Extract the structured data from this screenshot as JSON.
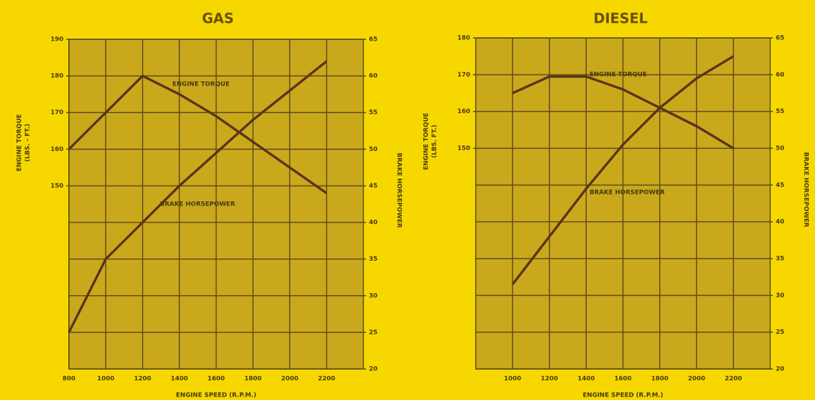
{
  "chart_data": [
    {
      "type": "line",
      "title": "GAS",
      "x_label": "ENGINE SPEED (R.P.M.)",
      "y_label": [
        "ENGINE TORQUE",
        "(LBS. - FT.)"
      ],
      "y2_label": "BRAKE HORSEPOWER",
      "x": [
        800,
        1000,
        1200,
        1400,
        1600,
        1800,
        2000,
        2200
      ],
      "xlim": [
        800,
        2400
      ],
      "xticks": [
        800,
        1000,
        1200,
        1400,
        1600,
        1800,
        2000,
        2200
      ],
      "ylim": [
        100,
        190
      ],
      "yticks": [
        150,
        160,
        170,
        180,
        190
      ],
      "y2lim": [
        20,
        65
      ],
      "y2ticks": [
        20,
        25,
        30,
        35,
        40,
        45,
        50,
        55,
        60,
        65
      ],
      "grid": true,
      "series": [
        {
          "name": "ENGINE TORQUE",
          "color": "#5a3418",
          "values": [
            160,
            170,
            180,
            175,
            169,
            162,
            155,
            148
          ]
        },
        {
          "name": "BRAKE HORSEPOWER",
          "color": "#5a3418",
          "axis": "y2",
          "values": [
            25,
            35,
            40,
            45,
            49.5,
            54,
            58,
            62
          ]
        }
      ]
    },
    {
      "type": "line",
      "title": "DIESEL",
      "x_label": "ENGINE SPEED (R.P.M.)",
      "y_label": [
        "ENGINE TORQUE",
        "(LBS. FT.)"
      ],
      "y2_label": "BRAKE HORSEPOWER",
      "x": [
        1000,
        1200,
        1400,
        1600,
        1800,
        2000,
        2200
      ],
      "xlim": [
        800,
        2400
      ],
      "xticks": [
        1000,
        1200,
        1400,
        1600,
        1800,
        2000,
        2200
      ],
      "ylim": [
        90,
        180
      ],
      "yticks": [
        150,
        160,
        170,
        180
      ],
      "y2lim": [
        20,
        65
      ],
      "y2ticks": [
        20,
        25,
        30,
        35,
        40,
        45,
        50,
        55,
        60,
        65
      ],
      "grid": true,
      "series": [
        {
          "name": "ENGINE TORQUE",
          "color": "#5a3418",
          "values": [
            165,
            169.5,
            169.5,
            166,
            161,
            156,
            150
          ]
        },
        {
          "name": "BRAKE HORSEPOWER",
          "color": "#5a3418",
          "axis": "y2",
          "values": [
            31.5,
            38,
            44.5,
            50.5,
            55.5,
            59.5,
            62.5
          ]
        }
      ]
    }
  ]
}
